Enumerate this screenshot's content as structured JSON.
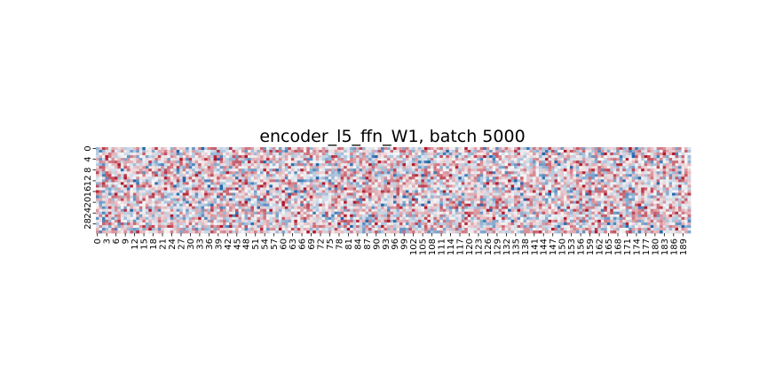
{
  "chart_data": {
    "type": "heatmap",
    "title": "encoder_l5_ffn_W1, batch 5000",
    "n_rows": 32,
    "n_cols": 192,
    "row_tick_labels": [
      "0",
      "4",
      "8",
      "12",
      "16",
      "20",
      "24",
      "28"
    ],
    "row_tick_values": [
      0,
      4,
      8,
      12,
      16,
      20,
      24,
      28
    ],
    "col_tick_labels": [
      "0",
      "3",
      "6",
      "9",
      "12",
      "15",
      "18",
      "21",
      "24",
      "27",
      "30",
      "33",
      "36",
      "39",
      "42",
      "45",
      "48",
      "51",
      "54",
      "57",
      "60",
      "63",
      "66",
      "69",
      "72",
      "75",
      "78",
      "81",
      "84",
      "87",
      "90",
      "93",
      "96",
      "99",
      "102",
      "105",
      "108",
      "111",
      "114",
      "117",
      "120",
      "123",
      "126",
      "129",
      "132",
      "135",
      "138",
      "141",
      "144",
      "147",
      "150",
      "153",
      "156",
      "159",
      "162",
      "165",
      "168",
      "171",
      "174",
      "177",
      "180",
      "183",
      "186",
      "189"
    ],
    "col_tick_values": [
      0,
      3,
      6,
      9,
      12,
      15,
      18,
      21,
      24,
      27,
      30,
      33,
      36,
      39,
      42,
      45,
      48,
      51,
      54,
      57,
      60,
      63,
      66,
      69,
      72,
      75,
      78,
      81,
      84,
      87,
      90,
      93,
      96,
      99,
      102,
      105,
      108,
      111,
      114,
      117,
      120,
      123,
      126,
      129,
      132,
      135,
      138,
      141,
      144,
      147,
      150,
      153,
      156,
      159,
      162,
      165,
      168,
      171,
      174,
      177,
      180,
      183,
      186,
      189
    ],
    "colormap": "RdBu_r",
    "value_range": [
      -1,
      1
    ],
    "grid": false,
    "legend": "none",
    "colors": {
      "negative": "#2166ac",
      "neutral": "#f7f7f7",
      "positive": "#b2182b"
    }
  }
}
